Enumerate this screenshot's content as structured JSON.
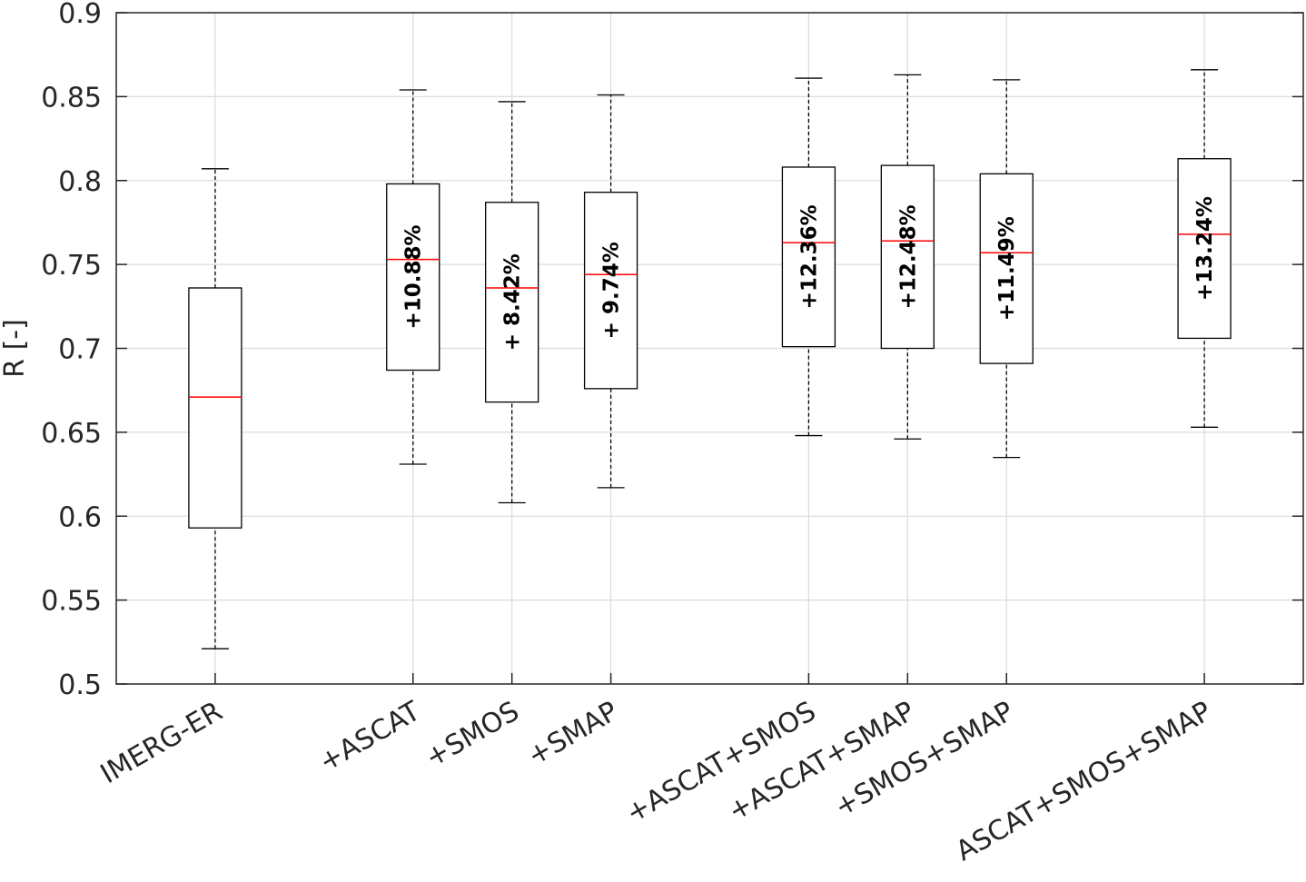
{
  "chart_data": {
    "type": "boxplot",
    "ylabel": "R [-]",
    "ylim": [
      0.5,
      0.9
    ],
    "yticks": [
      "0.5",
      "0.55",
      "0.6",
      "0.65",
      "0.7",
      "0.75",
      "0.8",
      "0.85",
      "0.9"
    ],
    "grid": true,
    "colors": {
      "median": "#ff0000",
      "box": "#000000",
      "grid": "#dcdcdc",
      "axis": "#262626"
    },
    "boxes": [
      {
        "label": "IMERG-ER",
        "x": 1,
        "min": 0.521,
        "q1": 0.593,
        "median": 0.671,
        "q3": 0.736,
        "max": 0.807,
        "annotation": ""
      },
      {
        "label": "+ASCAT",
        "x": 3,
        "min": 0.631,
        "q1": 0.687,
        "median": 0.753,
        "q3": 0.798,
        "max": 0.854,
        "annotation": "+10.88%"
      },
      {
        "label": "+SMOS",
        "x": 4,
        "min": 0.608,
        "q1": 0.668,
        "median": 0.736,
        "q3": 0.787,
        "max": 0.847,
        "annotation": "+ 8.42%"
      },
      {
        "label": "+SMAP",
        "x": 5,
        "min": 0.617,
        "q1": 0.676,
        "median": 0.744,
        "q3": 0.793,
        "max": 0.851,
        "annotation": "+ 9.74%"
      },
      {
        "label": "+ASCAT+SMOS",
        "x": 7,
        "min": 0.648,
        "q1": 0.701,
        "median": 0.763,
        "q3": 0.808,
        "max": 0.861,
        "annotation": "+12.36%"
      },
      {
        "label": "+ASCAT+SMAP",
        "x": 8,
        "min": 0.646,
        "q1": 0.7,
        "median": 0.764,
        "q3": 0.809,
        "max": 0.863,
        "annotation": "+12.48%"
      },
      {
        "label": "+SMOS+SMAP",
        "x": 9,
        "min": 0.635,
        "q1": 0.691,
        "median": 0.757,
        "q3": 0.804,
        "max": 0.86,
        "annotation": "+11.49%"
      },
      {
        "label": "ASCAT+SMOS+SMAP",
        "x": 11,
        "min": 0.653,
        "q1": 0.706,
        "median": 0.768,
        "q3": 0.813,
        "max": 0.866,
        "annotation": "+13.24%"
      }
    ]
  }
}
